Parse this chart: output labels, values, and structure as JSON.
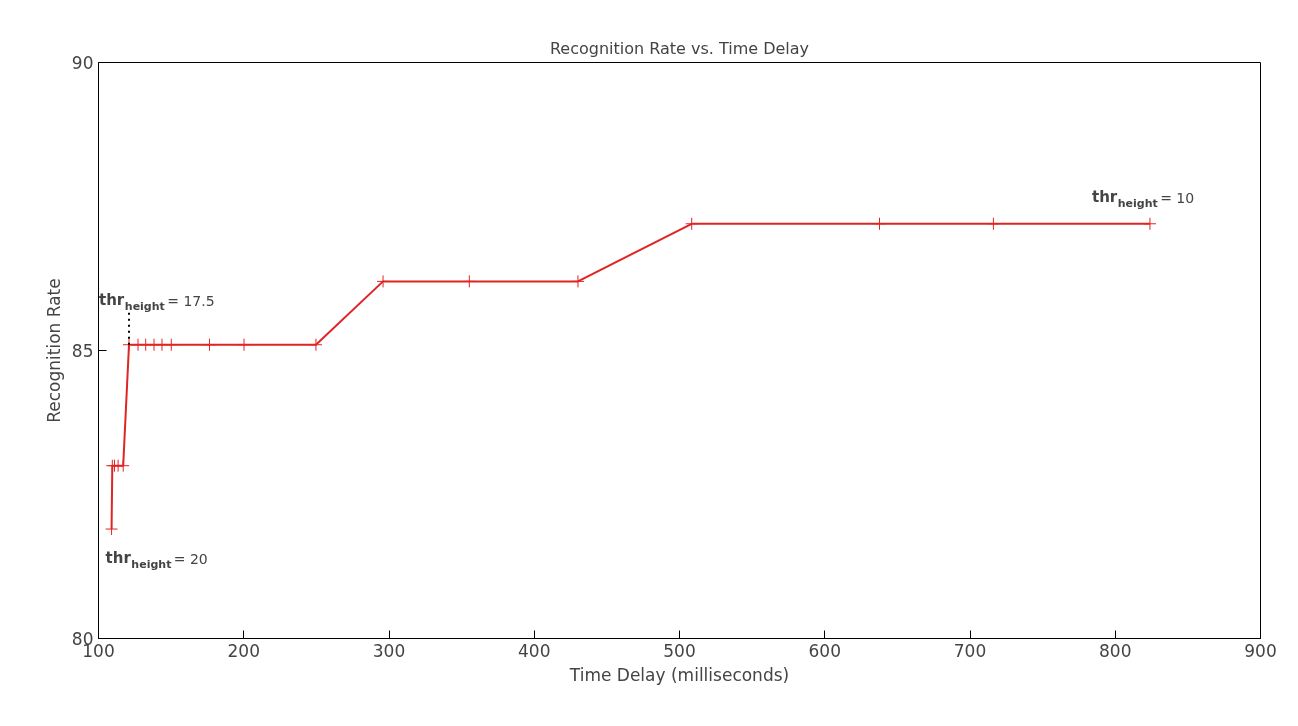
{
  "chart_data": {
    "type": "line",
    "title": "Recognition Rate vs. Time Delay",
    "xlabel": "Time Delay (milliseconds)",
    "ylabel": "Recognition Rate",
    "x": [
      109,
      109.5,
      111,
      113.5,
      117,
      121,
      127.2,
      132.5,
      138.2,
      143.7,
      150.1,
      176.4,
      200.2,
      249.7,
      295.9,
      355.3,
      430.1,
      508.4,
      637.7,
      716.1,
      823.9
    ],
    "series": [
      {
        "color": "#e02424",
        "values": [
          81.9,
          83.0,
          83.0,
          83.0,
          83.0,
          85.1,
          85.1,
          85.1,
          85.1,
          85.1,
          85.1,
          85.1,
          85.1,
          85.1,
          86.2,
          86.2,
          86.2,
          87.2,
          87.2,
          87.2,
          87.2
        ]
      }
    ],
    "xlim": [
      100,
      900
    ],
    "xticks": [
      100,
      200,
      300,
      400,
      500,
      600,
      700,
      800,
      900
    ],
    "ylim": [
      80,
      90
    ],
    "yticks": [
      80,
      85,
      90
    ],
    "grid": false,
    "marker": "cross",
    "line_style": "solid",
    "annotations": [
      {
        "text": "thr$_{height}$ = 20",
        "x": 109,
        "y": 81.9
      },
      {
        "text": "thr$_{height}$ = 17.5",
        "x": 121,
        "y": 85.1
      },
      {
        "text": "thr$_{height}$ = 10",
        "x": 823.9,
        "y": 87.2
      }
    ]
  }
}
